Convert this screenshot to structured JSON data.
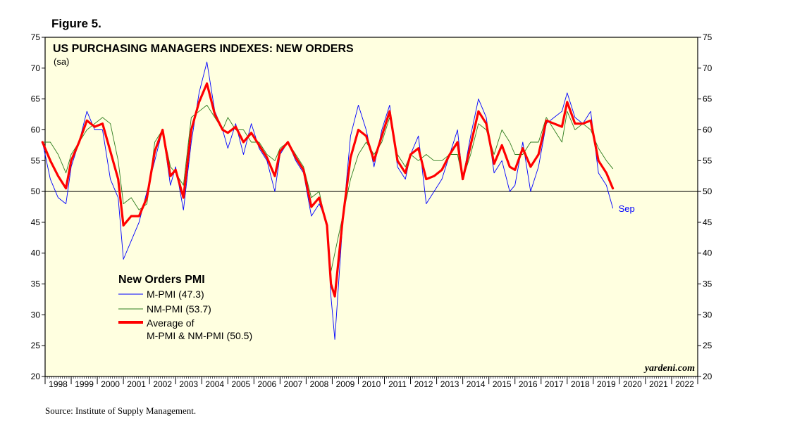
{
  "figure_label": "Figure 5.",
  "source": "Source: Institute of Supply Management.",
  "watermark": "yardeni.com",
  "colors": {
    "background": "#FFFFE0",
    "m_pmi": "#0000FF",
    "nm_pmi": "#2E7D1E",
    "average": "#FF0000"
  },
  "chart_data": {
    "type": "line",
    "title": "US PURCHASING MANAGERS INDEXES: NEW ORDERS",
    "subtitle": "(sa)",
    "legend_title": "New Orders PMI",
    "legend_position": "middle-left",
    "grid": false,
    "reference_line": 50,
    "ylim": [
      20,
      75
    ],
    "yticks": [
      20,
      25,
      30,
      35,
      40,
      45,
      50,
      55,
      60,
      65,
      70,
      75
    ],
    "xlim": [
      1998,
      2023
    ],
    "x_tick_labels": [
      "1998",
      "1999",
      "2000",
      "2001",
      "2002",
      "2003",
      "2004",
      "2005",
      "2006",
      "2007",
      "2008",
      "2009",
      "2010",
      "2011",
      "2012",
      "2013",
      "2014",
      "2015",
      "2016",
      "2017",
      "2018",
      "2019",
      "2020",
      "2021",
      "2022"
    ],
    "annotation": {
      "text": "Sep",
      "x": 2019.75,
      "y": 47.3
    },
    "series": [
      {
        "name": "M-PMI (47.3)",
        "x": [
          1997.9,
          1998.2,
          1998.5,
          1998.8,
          1999.0,
          1999.3,
          1999.6,
          1999.9,
          2000.2,
          2000.5,
          2000.8,
          2001.0,
          2001.3,
          2001.6,
          2001.9,
          2002.2,
          2002.5,
          2002.8,
          2003.0,
          2003.3,
          2003.6,
          2003.9,
          2004.2,
          2004.5,
          2004.8,
          2005.0,
          2005.3,
          2005.6,
          2005.9,
          2006.2,
          2006.5,
          2006.8,
          2007.0,
          2007.3,
          2007.6,
          2007.9,
          2008.2,
          2008.5,
          2008.8,
          2008.95,
          2009.1,
          2009.4,
          2009.7,
          2010.0,
          2010.3,
          2010.6,
          2010.9,
          2011.2,
          2011.5,
          2011.8,
          2012.0,
          2012.3,
          2012.6,
          2012.9,
          2013.2,
          2013.5,
          2013.8,
          2014.0,
          2014.3,
          2014.6,
          2014.9,
          2015.2,
          2015.5,
          2015.8,
          2016.0,
          2016.3,
          2016.6,
          2016.9,
          2017.2,
          2017.5,
          2017.8,
          2018.0,
          2018.3,
          2018.6,
          2018.9,
          2019.2,
          2019.5,
          2019.75
        ],
        "y": [
          58.0,
          52.0,
          49.0,
          48.0,
          54.0,
          58.0,
          63.0,
          60.0,
          60.0,
          52.0,
          49.0,
          39.0,
          42.0,
          45.0,
          50.0,
          55.0,
          60.0,
          51.0,
          54.0,
          47.0,
          58.0,
          66.0,
          71.0,
          63.0,
          60.0,
          57.0,
          61.0,
          56.0,
          61.0,
          57.0,
          55.0,
          50.0,
          56.0,
          58.0,
          55.0,
          53.0,
          46.0,
          48.0,
          45.0,
          33.0,
          26.0,
          45.0,
          59.0,
          64.0,
          60.0,
          54.0,
          60.0,
          64.0,
          54.0,
          52.0,
          56.0,
          59.0,
          48.0,
          50.0,
          52.0,
          56.0,
          60.0,
          52.0,
          59.0,
          65.0,
          62.0,
          53.0,
          55.0,
          50.0,
          51.0,
          58.0,
          50.0,
          54.0,
          61.0,
          62.0,
          63.0,
          66.0,
          62.0,
          61.0,
          63.0,
          53.0,
          51.0,
          47.3
        ]
      },
      {
        "name": "NM-PMI (53.7)",
        "x": [
          1997.9,
          1998.2,
          1998.5,
          1998.8,
          1999.0,
          1999.3,
          1999.6,
          1999.9,
          2000.2,
          2000.5,
          2000.8,
          2001.0,
          2001.3,
          2001.6,
          2001.9,
          2002.2,
          2002.5,
          2002.8,
          2003.0,
          2003.3,
          2003.6,
          2003.9,
          2004.2,
          2004.5,
          2004.8,
          2005.0,
          2005.3,
          2005.6,
          2005.9,
          2006.2,
          2006.5,
          2006.8,
          2007.0,
          2007.3,
          2007.6,
          2007.9,
          2008.2,
          2008.5,
          2008.8,
          2008.95,
          2009.1,
          2009.4,
          2009.7,
          2010.0,
          2010.3,
          2010.6,
          2010.9,
          2011.2,
          2011.5,
          2011.8,
          2012.0,
          2012.3,
          2012.6,
          2012.9,
          2013.2,
          2013.5,
          2013.8,
          2014.0,
          2014.3,
          2014.6,
          2014.9,
          2015.2,
          2015.5,
          2015.8,
          2016.0,
          2016.3,
          2016.6,
          2016.9,
          2017.2,
          2017.5,
          2017.8,
          2018.0,
          2018.3,
          2018.6,
          2018.9,
          2019.2,
          2019.5,
          2019.75
        ],
        "y": [
          58.0,
          58.0,
          56.0,
          53.0,
          56.0,
          58.0,
          60.0,
          61.0,
          62.0,
          61.0,
          55.0,
          48.0,
          49.0,
          47.0,
          48.0,
          58.0,
          60.0,
          54.0,
          53.0,
          51.0,
          62.0,
          63.0,
          64.0,
          62.0,
          60.0,
          62.0,
          60.0,
          60.0,
          58.0,
          58.0,
          56.0,
          55.0,
          57.0,
          58.0,
          56.0,
          54.0,
          49.0,
          50.0,
          44.0,
          37.0,
          40.0,
          46.0,
          52.0,
          56.0,
          58.0,
          56.0,
          58.0,
          62.0,
          56.0,
          54.0,
          56.0,
          55.0,
          56.0,
          55.0,
          55.0,
          56.0,
          56.0,
          52.0,
          56.0,
          61.0,
          60.0,
          56.0,
          60.0,
          58.0,
          56.0,
          56.0,
          58.0,
          58.0,
          62.0,
          60.0,
          58.0,
          63.0,
          60.0,
          61.0,
          60.0,
          57.0,
          55.0,
          53.7
        ]
      },
      {
        "name": "Average of\nM-PMI & NM-PMI (50.5)",
        "x": [
          1997.9,
          1998.2,
          1998.5,
          1998.8,
          1999.0,
          1999.3,
          1999.6,
          1999.9,
          2000.2,
          2000.5,
          2000.8,
          2001.0,
          2001.3,
          2001.6,
          2001.9,
          2002.2,
          2002.5,
          2002.8,
          2003.0,
          2003.3,
          2003.6,
          2003.9,
          2004.2,
          2004.5,
          2004.8,
          2005.0,
          2005.3,
          2005.6,
          2005.9,
          2006.2,
          2006.5,
          2006.8,
          2007.0,
          2007.3,
          2007.6,
          2007.9,
          2008.2,
          2008.5,
          2008.8,
          2008.95,
          2009.1,
          2009.4,
          2009.7,
          2010.0,
          2010.3,
          2010.6,
          2010.9,
          2011.2,
          2011.5,
          2011.8,
          2012.0,
          2012.3,
          2012.6,
          2012.9,
          2013.2,
          2013.5,
          2013.8,
          2014.0,
          2014.3,
          2014.6,
          2014.9,
          2015.2,
          2015.5,
          2015.8,
          2016.0,
          2016.3,
          2016.6,
          2016.9,
          2017.2,
          2017.5,
          2017.8,
          2018.0,
          2018.3,
          2018.6,
          2018.9,
          2019.2,
          2019.5,
          2019.75
        ],
        "y": [
          58.0,
          55.0,
          52.5,
          50.5,
          55.0,
          58.0,
          61.5,
          60.5,
          61.0,
          56.5,
          52.0,
          44.5,
          46.0,
          46.0,
          49.0,
          56.5,
          60.0,
          52.5,
          53.5,
          49.0,
          60.0,
          64.5,
          67.5,
          62.5,
          60.0,
          59.5,
          60.5,
          58.0,
          59.5,
          57.5,
          55.5,
          52.5,
          56.5,
          58.0,
          55.5,
          53.5,
          47.5,
          49.0,
          44.5,
          35.0,
          33.0,
          45.5,
          55.5,
          60.0,
          59.0,
          55.0,
          59.0,
          63.0,
          55.0,
          53.0,
          56.0,
          57.0,
          52.0,
          52.5,
          53.5,
          56.0,
          58.0,
          52.0,
          57.5,
          63.0,
          61.0,
          54.5,
          57.5,
          54.0,
          53.5,
          57.0,
          54.0,
          56.0,
          61.5,
          61.0,
          60.5,
          64.5,
          61.0,
          61.0,
          61.5,
          55.0,
          53.0,
          50.5
        ]
      }
    ]
  }
}
